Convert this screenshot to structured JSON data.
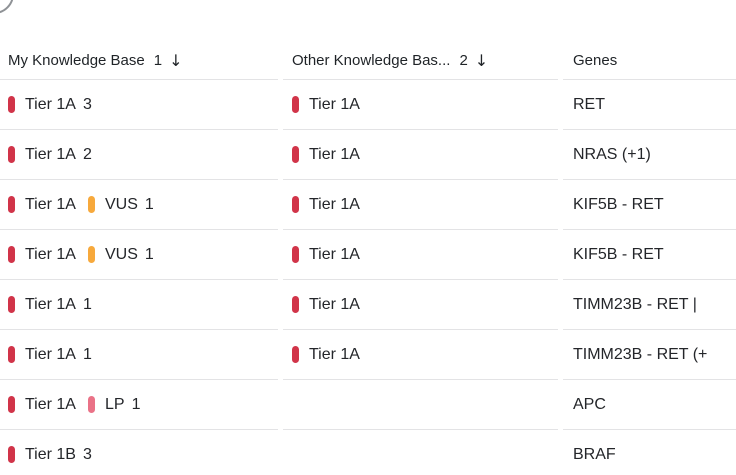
{
  "decor": {
    "arc_color": "#8f9296"
  },
  "badge_colors": {
    "red": "#d13449",
    "amber": "#f7a93c",
    "pink": "#ea7287"
  },
  "header": {
    "columns": [
      {
        "label": "My Knowledge Base",
        "sort_order": "1",
        "sort_icon": "↓"
      },
      {
        "label": "Other Knowledge Bas...",
        "sort_order": "2",
        "sort_icon": "↓"
      },
      {
        "label": "Genes",
        "sort_order": "",
        "sort_icon": ""
      }
    ]
  },
  "rows": [
    {
      "my_kb": [
        {
          "label": "Tier 1A",
          "count": "3",
          "color": "red"
        }
      ],
      "other_kb": [
        {
          "label": "Tier 1A",
          "count": "",
          "color": "red"
        }
      ],
      "genes": "RET"
    },
    {
      "my_kb": [
        {
          "label": "Tier 1A",
          "count": "2",
          "color": "red"
        }
      ],
      "other_kb": [
        {
          "label": "Tier 1A",
          "count": "",
          "color": "red"
        }
      ],
      "genes": "NRAS (+1)"
    },
    {
      "my_kb": [
        {
          "label": "Tier 1A",
          "count": "",
          "color": "red"
        },
        {
          "label": "VUS",
          "count": "1",
          "color": "amber"
        }
      ],
      "other_kb": [
        {
          "label": "Tier 1A",
          "count": "",
          "color": "red"
        }
      ],
      "genes": "KIF5B - RET"
    },
    {
      "my_kb": [
        {
          "label": "Tier 1A",
          "count": "",
          "color": "red"
        },
        {
          "label": "VUS",
          "count": "1",
          "color": "amber"
        }
      ],
      "other_kb": [
        {
          "label": "Tier 1A",
          "count": "",
          "color": "red"
        }
      ],
      "genes": "KIF5B - RET"
    },
    {
      "my_kb": [
        {
          "label": "Tier 1A",
          "count": "1",
          "color": "red"
        }
      ],
      "other_kb": [
        {
          "label": "Tier 1A",
          "count": "",
          "color": "red"
        }
      ],
      "genes": "TIMM23B - RET | "
    },
    {
      "my_kb": [
        {
          "label": "Tier 1A",
          "count": "1",
          "color": "red"
        }
      ],
      "other_kb": [
        {
          "label": "Tier 1A",
          "count": "",
          "color": "red"
        }
      ],
      "genes": "TIMM23B - RET (+"
    },
    {
      "my_kb": [
        {
          "label": "Tier 1A",
          "count": "",
          "color": "red"
        },
        {
          "label": "LP",
          "count": "1",
          "color": "pink"
        }
      ],
      "other_kb": [],
      "genes": "APC"
    },
    {
      "my_kb": [
        {
          "label": "Tier 1B",
          "count": "3",
          "color": "red"
        }
      ],
      "other_kb": [],
      "genes": "BRAF"
    }
  ]
}
